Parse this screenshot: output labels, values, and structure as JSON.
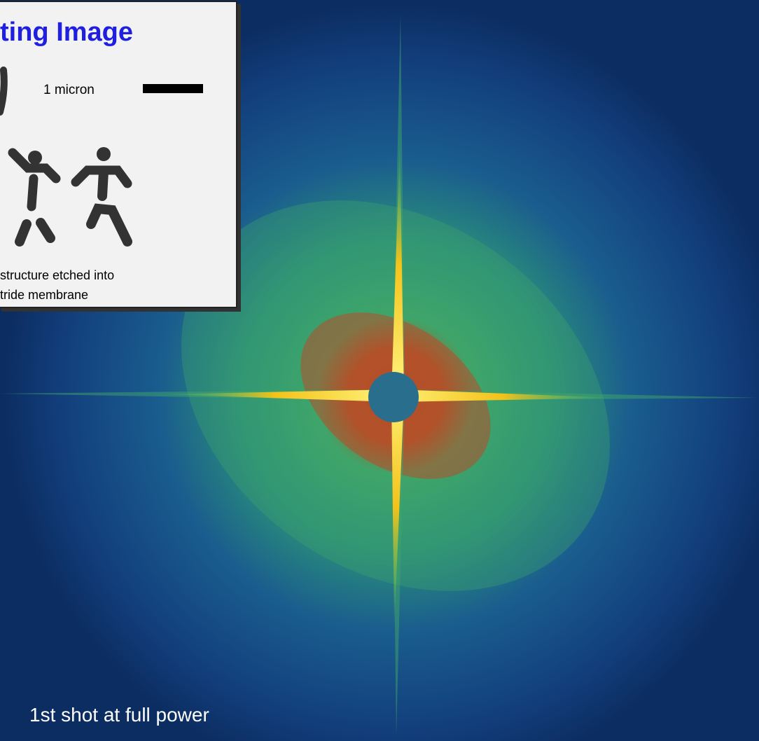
{
  "inset": {
    "title": "ting Image",
    "scale_label": "1 micron",
    "caption": [
      "structure etched into",
      "tride membrane"
    ]
  },
  "caption": "1st shot at full power"
}
